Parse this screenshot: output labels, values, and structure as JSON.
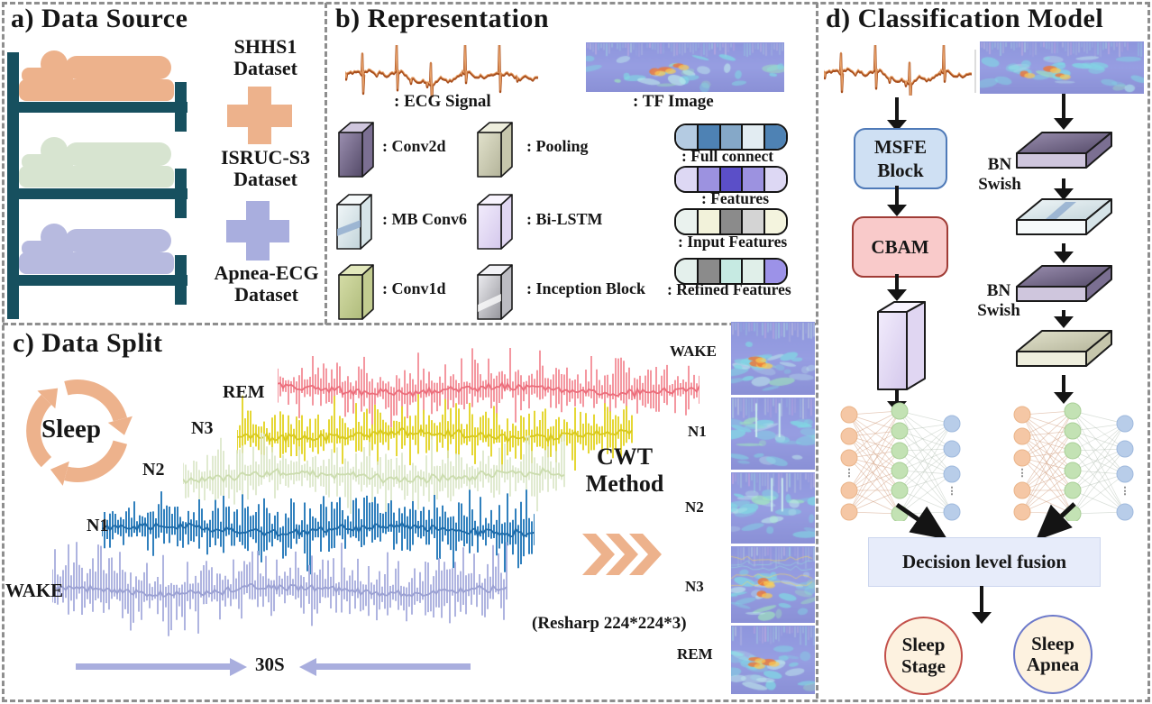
{
  "colors": {
    "accent_orange": "#edb28c",
    "frame_teal": "#17505f",
    "lavender": "#a9aede",
    "msfe_fill": "#cfe0f3",
    "msfe_border": "#4f7ab8",
    "cbam_fill": "#f9caca",
    "cbam_border": "#a03c36",
    "fusion_fill": "#e7ecfa",
    "stage_circle_border": "#c3504a",
    "apnea_circle_border": "#6c79ca",
    "circle_fill": "#fdf2e0",
    "ecg_main": "#a84e1c",
    "ecg_light": "#e8a26a"
  },
  "a": {
    "title": "a) Data Source",
    "bed_colors": [
      "#edb28c",
      "#d7e4d0",
      "#b7badf"
    ],
    "datasets": [
      {
        "line1": "SHHS1",
        "line2": "Dataset"
      },
      {
        "line1": "ISRUC-S3",
        "line2": "Dataset"
      },
      {
        "line1": "Apnea-ECG",
        "line2": "Dataset"
      }
    ]
  },
  "b": {
    "title": "b) Representation",
    "ecg_label": ": ECG Signal",
    "tf_label": ": TF  Image",
    "blocks": [
      {
        "label": ": Conv2d"
      },
      {
        "label": ": Pooling"
      },
      {
        "label": ": MB Conv6"
      },
      {
        "label": ": Bi-LSTM"
      },
      {
        "label": ": Conv1d"
      },
      {
        "label": ": Inception Block"
      }
    ],
    "pills": [
      {
        "label": ": Full connect",
        "cells": [
          "#b4cbe2",
          "#4e82b4",
          "#85a8c8",
          "#e2ecf2",
          "#4e82b4"
        ]
      },
      {
        "label": ": Features",
        "cells": [
          "#ddd8f4",
          "#9c92e0",
          "#5b4fc8",
          "#9c92e0",
          "#ddd8f4"
        ]
      },
      {
        "label": ": Input Features",
        "cells": [
          "#eaf2ee",
          "#f2f2da",
          "#8b8b8b",
          "#d4d4d4",
          "#f4f4de"
        ]
      },
      {
        "label": ": Refined Features",
        "cells": [
          "#e4f0ec",
          "#8b8b8b",
          "#c6eae2",
          "#e0efe9",
          "#9c92e8"
        ]
      }
    ]
  },
  "c": {
    "title": "c) Data Split",
    "cycle_label": "Sleep",
    "signals": [
      {
        "label": "WAKE",
        "color": "#abb0de",
        "mid": "#9aa0d2"
      },
      {
        "label": "N1",
        "color": "#2579ba",
        "mid": "#1d6aa8"
      },
      {
        "label": "N2",
        "color": "#d9e5c4",
        "mid": "#cbdcae"
      },
      {
        "label": "N3",
        "color": "#e4d52b",
        "mid": "#d8c91c"
      },
      {
        "label": "REM",
        "color": "#f2858f",
        "mid": "#ec6d7b"
      }
    ],
    "cwt_line1": "CWT",
    "cwt_line2": "Method",
    "resharp": "(Resharp 224*224*3)",
    "duration": "30S",
    "strip_labels": [
      "WAKE",
      "N1",
      "N2",
      "N3",
      "REM"
    ]
  },
  "d": {
    "title": "d) Classification Model",
    "msfe_line1": "MSFE",
    "msfe_line2": "Block",
    "cbam": "CBAM",
    "bn1_line1": "BN",
    "bn1_line2": "Swish",
    "bn2_line1": "BN",
    "bn2_line2": "Swish",
    "fusion": "Decision level fusion",
    "stage_line1": "Sleep",
    "stage_line2": "Stage",
    "apnea_line1": "Sleep",
    "apnea_line2": "Apnea"
  }
}
